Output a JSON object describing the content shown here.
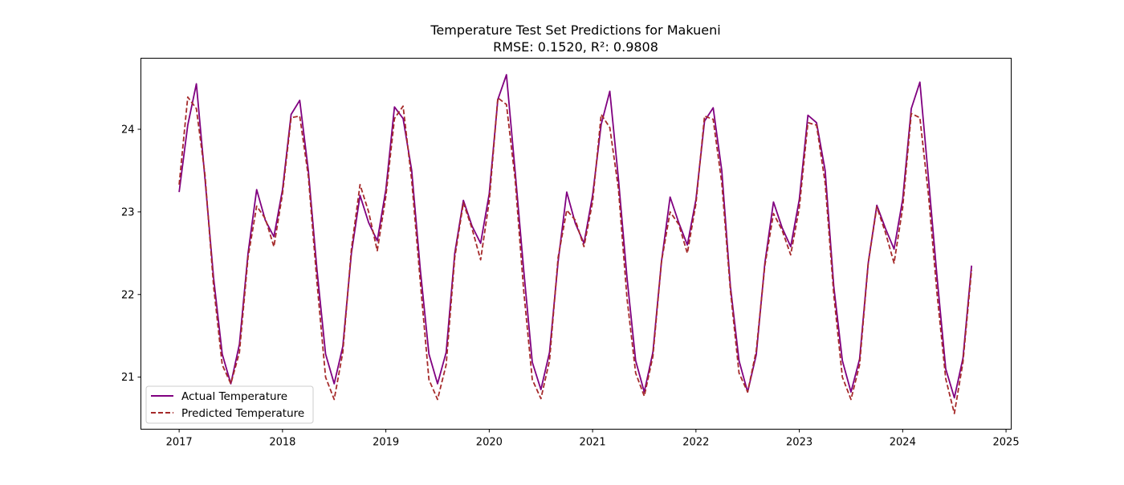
{
  "chart_data": {
    "type": "line",
    "title": "Temperature Test Set Predictions for Makueni",
    "subtitle": "RMSE: 0.1520, R²: 0.9808",
    "xlabel": "",
    "ylabel": "",
    "xlim": [
      2016.63,
      2025.05
    ],
    "ylim": [
      20.37,
      24.86
    ],
    "xticks": [
      2017,
      2018,
      2019,
      2020,
      2021,
      2022,
      2023,
      2024,
      2025
    ],
    "yticks": [
      21,
      22,
      23,
      24
    ],
    "grid": false,
    "legend_position": "lower-left",
    "x_start_year": 2017,
    "x_step_months": 1,
    "series": [
      {
        "name": "Actual Temperature",
        "color": "#800080",
        "style": "solid",
        "values": [
          23.24,
          24.05,
          24.55,
          23.4,
          22.2,
          21.28,
          20.92,
          21.4,
          22.5,
          23.27,
          22.9,
          22.7,
          23.27,
          24.18,
          24.35,
          23.5,
          22.3,
          21.28,
          20.92,
          21.37,
          22.5,
          23.2,
          22.87,
          22.65,
          23.27,
          24.27,
          24.13,
          23.5,
          22.3,
          21.28,
          20.92,
          21.3,
          22.5,
          23.14,
          22.83,
          22.62,
          23.22,
          24.36,
          24.66,
          23.5,
          22.3,
          21.18,
          20.85,
          21.3,
          22.4,
          23.24,
          22.86,
          22.62,
          23.2,
          24.06,
          24.46,
          23.4,
          22.2,
          21.2,
          20.82,
          21.3,
          22.4,
          23.18,
          22.87,
          22.6,
          23.15,
          24.1,
          24.26,
          23.5,
          22.1,
          21.2,
          20.82,
          21.27,
          22.38,
          23.12,
          22.81,
          22.58,
          23.15,
          24.17,
          24.08,
          23.5,
          22.1,
          21.2,
          20.82,
          21.22,
          22.38,
          23.08,
          22.8,
          22.55,
          23.15,
          24.25,
          24.57,
          23.4,
          22.2,
          21.1,
          20.75,
          21.23,
          22.35
        ]
      },
      {
        "name": "Predicted Temperature",
        "color": "#a52a2a",
        "style": "dashed",
        "values": [
          23.33,
          24.39,
          24.25,
          23.45,
          22.1,
          21.15,
          20.92,
          21.3,
          22.45,
          23.07,
          22.92,
          22.58,
          23.22,
          24.14,
          24.16,
          23.43,
          22.15,
          21.0,
          20.73,
          21.3,
          22.55,
          23.33,
          23.0,
          22.53,
          23.19,
          24.13,
          24.28,
          23.38,
          22.15,
          20.97,
          20.73,
          21.15,
          22.45,
          23.11,
          22.8,
          22.42,
          23.13,
          24.38,
          24.3,
          23.4,
          22.05,
          20.97,
          20.74,
          21.2,
          22.45,
          23.02,
          22.9,
          22.58,
          23.12,
          24.18,
          24.02,
          23.28,
          21.95,
          21.05,
          20.77,
          21.25,
          22.4,
          23.0,
          22.85,
          22.5,
          23.1,
          24.16,
          24.12,
          23.35,
          22.05,
          21.05,
          20.82,
          21.32,
          22.35,
          22.98,
          22.78,
          22.48,
          23.05,
          24.08,
          24.05,
          23.35,
          22.0,
          21.0,
          20.73,
          21.15,
          22.38,
          23.06,
          22.75,
          22.38,
          23.05,
          24.19,
          24.14,
          23.2,
          22.0,
          20.98,
          20.56,
          21.18,
          22.3
        ]
      }
    ]
  }
}
